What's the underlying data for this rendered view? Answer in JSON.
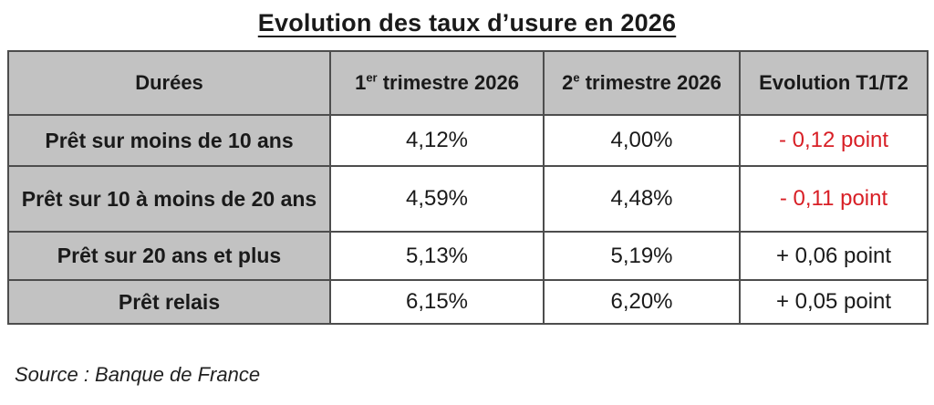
{
  "title": "Evolution des taux d’usure en 2026",
  "source": "Source : Banque de France",
  "colors": {
    "header_bg": "#c2c2c2",
    "border": "#4d4d4d",
    "negative_text": "#d81f26",
    "positive_text": "#1a1a1a"
  },
  "table": {
    "headers": {
      "durations": "Durées",
      "q1": {
        "base": "1",
        "sup": "er",
        "rest": " trimestre 2026"
      },
      "q2": {
        "base": "2",
        "sup": "e",
        "rest": " trimestre 2026"
      },
      "evolution": "Evolution T1/T2"
    },
    "rows": [
      {
        "label": "Prêt sur moins de 10 ans",
        "q1": "4,12%",
        "q2": "4,00%",
        "evolution": "- 0,12 point",
        "evolution_color": "#d81f26"
      },
      {
        "label": "Prêt sur 10 à moins de 20 ans",
        "q1": "4,59%",
        "q2": "4,48%",
        "evolution": "- 0,11 point",
        "evolution_color": "#d81f26"
      },
      {
        "label": "Prêt sur 20 ans et plus",
        "q1": "5,13%",
        "q2": "5,19%",
        "evolution": "+ 0,06 point",
        "evolution_color": "#1a1a1a"
      },
      {
        "label": "Prêt relais",
        "q1": "6,15%",
        "q2": "6,20%",
        "evolution": "+ 0,05 point",
        "evolution_color": "#1a1a1a"
      }
    ]
  },
  "chart_data": {
    "type": "table",
    "title": "Evolution des taux d’usure en 2026",
    "columns": [
      "Durées",
      "1er trimestre 2026",
      "2e trimestre 2026",
      "Evolution T1/T2"
    ],
    "rows": [
      [
        "Prêt sur moins de 10 ans",
        "4,12%",
        "4,00%",
        "- 0,12 point"
      ],
      [
        "Prêt sur 10 à moins de 20 ans",
        "4,59%",
        "4,48%",
        "- 0,11 point"
      ],
      [
        "Prêt sur 20 ans et plus",
        "5,13%",
        "5,19%",
        "+ 0,06 point"
      ],
      [
        "Prêt relais",
        "6,15%",
        "6,20%",
        "+ 0,05 point"
      ]
    ],
    "source": "Source : Banque de France"
  }
}
